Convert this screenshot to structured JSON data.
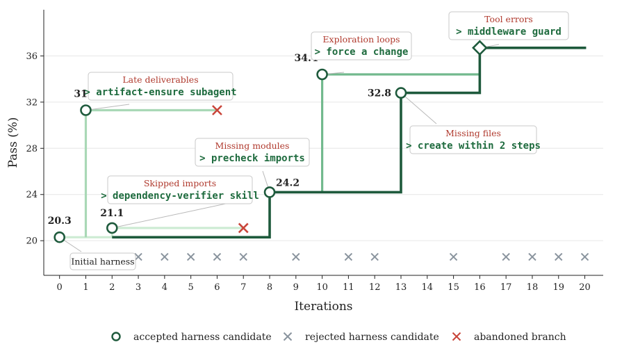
{
  "chart_data": {
    "type": "line",
    "title": "",
    "xlabel": "Iterations",
    "ylabel": "Pass (%)",
    "xlim": [
      -0.6,
      20.7
    ],
    "ylim": [
      17.0,
      40.0
    ],
    "xticks": [
      0,
      1,
      2,
      3,
      4,
      5,
      6,
      7,
      8,
      9,
      10,
      11,
      12,
      13,
      14,
      15,
      16,
      17,
      18,
      19,
      20
    ],
    "yticks": [
      20,
      24,
      28,
      32,
      36
    ],
    "grid": "horizontal",
    "colors": {
      "main": "#1e5a3c",
      "branch_mid": "#72b98d",
      "branch_light": "#a9d8b6",
      "branch_pale": "#cdebd3",
      "rejected": "#8a949e",
      "abandoned": "#c9453a",
      "issue_text": "#b03a2e",
      "fix_text": "#1e6b3e"
    },
    "series": [
      {
        "role": "main",
        "points": [
          [
            2,
            20.3
          ],
          [
            8,
            20.3
          ],
          [
            8,
            24.2
          ],
          [
            13,
            24.2
          ],
          [
            13,
            32.8
          ],
          [
            16,
            32.8
          ],
          [
            16,
            36.7
          ],
          [
            20.05,
            36.7
          ]
        ]
      },
      {
        "role": "branch_mid",
        "points": [
          [
            10,
            24.2
          ],
          [
            10,
            34.4
          ],
          [
            16,
            34.4
          ]
        ]
      },
      {
        "role": "branch_light",
        "points": [
          [
            1,
            20.3
          ],
          [
            1,
            31.3
          ],
          [
            6,
            31.3
          ]
        ]
      },
      {
        "role": "branch_pale",
        "points": [
          [
            0,
            20.3
          ],
          [
            2,
            20.3
          ],
          [
            2,
            21.1
          ],
          [
            7,
            21.1
          ]
        ]
      }
    ],
    "accepted": [
      {
        "x": 0,
        "y": 20.3,
        "label": "20.3",
        "color": "main"
      },
      {
        "x": 1,
        "y": 31.3,
        "label": "31.3",
        "color": "main"
      },
      {
        "x": 2,
        "y": 21.1,
        "label": "21.1",
        "color": "main"
      },
      {
        "x": 8,
        "y": 24.2,
        "label": "24.2",
        "color": "main"
      },
      {
        "x": 10,
        "y": 34.4,
        "label": "34.4",
        "color": "main"
      },
      {
        "x": 13,
        "y": 32.8,
        "label": "32.8",
        "color": "main"
      },
      {
        "x": 16,
        "y": 36.7,
        "label": "36.7",
        "color": "main",
        "marker": "diamond"
      }
    ],
    "rejected": [
      {
        "x": 3,
        "y": 18.6
      },
      {
        "x": 4,
        "y": 18.6
      },
      {
        "x": 5,
        "y": 18.6
      },
      {
        "x": 6,
        "y": 18.6
      },
      {
        "x": 7,
        "y": 18.6
      },
      {
        "x": 9,
        "y": 18.6
      },
      {
        "x": 11,
        "y": 18.6
      },
      {
        "x": 12,
        "y": 18.6
      },
      {
        "x": 15,
        "y": 18.6
      },
      {
        "x": 17,
        "y": 18.6
      },
      {
        "x": 18,
        "y": 18.6
      },
      {
        "x": 19,
        "y": 18.6
      },
      {
        "x": 20,
        "y": 18.6
      }
    ],
    "abandoned": [
      {
        "x": 6,
        "y": 31.3
      },
      {
        "x": 7,
        "y": 21.1
      }
    ],
    "annotations": [
      {
        "issue": "",
        "fix": "",
        "plain": "Initial harness"
      },
      {
        "issue": "Late deliverables",
        "fix": "> artifact-ensure subagent",
        "plain": ""
      },
      {
        "issue": "Skipped imports",
        "fix": "> dependency-verifier skill",
        "plain": ""
      },
      {
        "issue": "Missing modules",
        "fix": "> precheck imports",
        "plain": ""
      },
      {
        "issue": "Exploration loops",
        "fix": "> force a change",
        "plain": ""
      },
      {
        "issue": "Missing files",
        "fix": "> create within 2 steps",
        "plain": ""
      },
      {
        "issue": "Tool errors",
        "fix": "> middleware guard",
        "plain": ""
      }
    ],
    "legend": {
      "position": "bottom",
      "items": [
        {
          "label": "accepted harness candidate",
          "marker": "circle"
        },
        {
          "label": "rejected harness candidate",
          "marker": "x-gray"
        },
        {
          "label": "abandoned branch",
          "marker": "x-red"
        }
      ]
    }
  }
}
